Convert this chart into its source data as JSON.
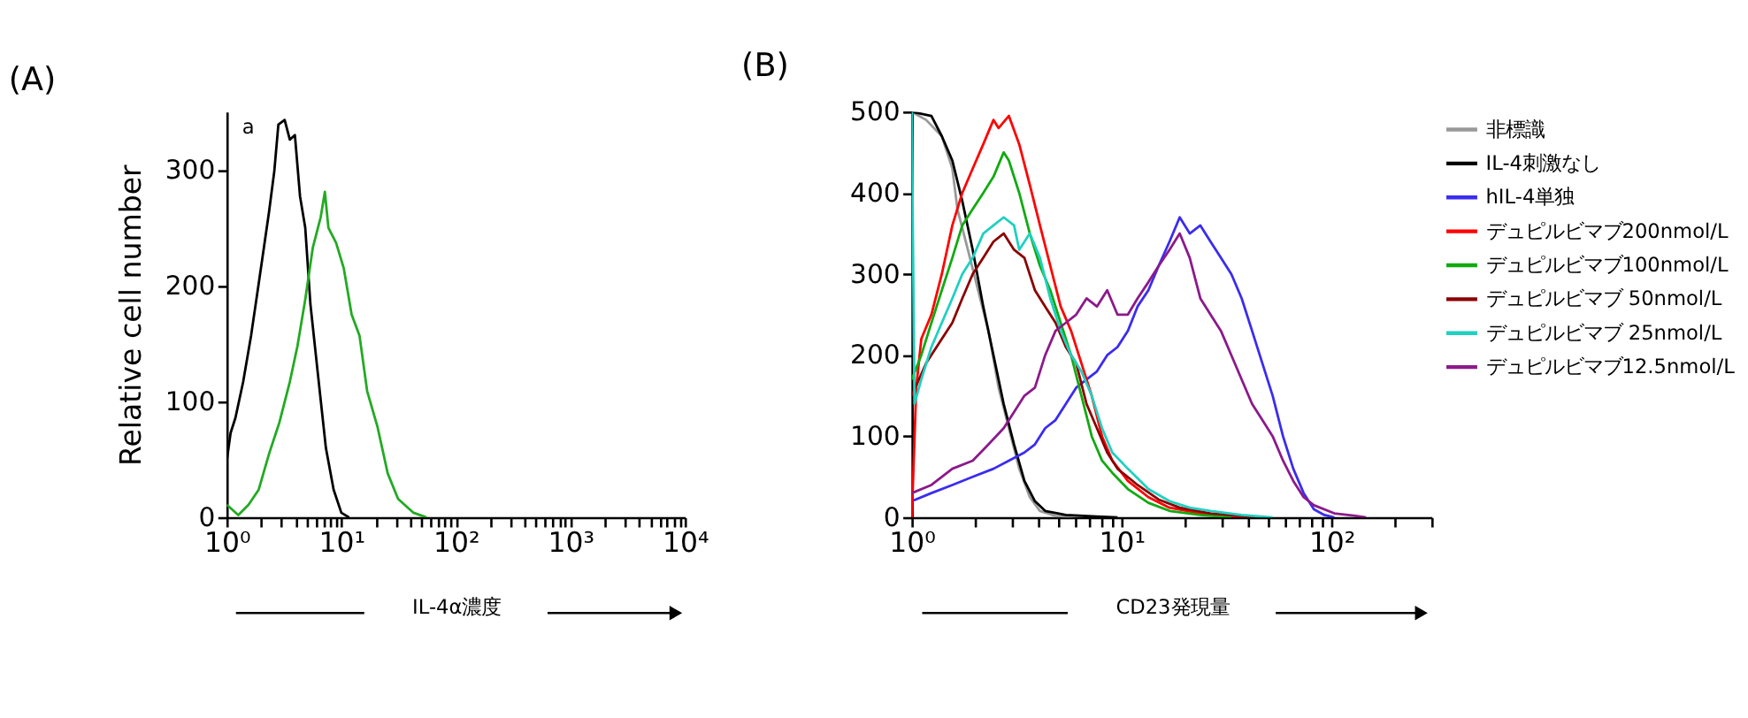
{
  "chart_data": [
    {
      "type": "line",
      "title": "(A)",
      "ylabel": "Relative cell number",
      "xlabel": "IL-4α濃度",
      "log": "x",
      "grid": false,
      "legend": false,
      "annotations": [
        "a"
      ],
      "xlim": [
        1,
        10000
      ],
      "ylim": [
        0,
        350
      ],
      "yticks": [
        0,
        100,
        200,
        300
      ],
      "xticks": [
        {
          "value": 1,
          "label": "10⁰"
        },
        {
          "value": 2,
          "label": null
        },
        {
          "value": 3,
          "label": null
        },
        {
          "value": 4,
          "label": null
        },
        {
          "value": 5,
          "label": null
        },
        {
          "value": 6,
          "label": null
        },
        {
          "value": 7,
          "label": null
        },
        {
          "value": 8,
          "label": null
        },
        {
          "value": 9,
          "label": null
        },
        {
          "value": 10,
          "label": "10¹"
        },
        {
          "value": 20,
          "label": null
        },
        {
          "value": 30,
          "label": null
        },
        {
          "value": 40,
          "label": null
        },
        {
          "value": 50,
          "label": null
        },
        {
          "value": 60,
          "label": null
        },
        {
          "value": 70,
          "label": null
        },
        {
          "value": 80,
          "label": null
        },
        {
          "value": 90,
          "label": null
        },
        {
          "value": 100,
          "label": "10²"
        },
        {
          "value": 200,
          "label": null
        },
        {
          "value": 300,
          "label": null
        },
        {
          "value": 400,
          "label": null
        },
        {
          "value": 500,
          "label": null
        },
        {
          "value": 600,
          "label": null
        },
        {
          "value": 700,
          "label": null
        },
        {
          "value": 800,
          "label": null
        },
        {
          "value": 900,
          "label": null
        },
        {
          "value": 1000,
          "label": "10³"
        },
        {
          "value": 2000,
          "label": null
        },
        {
          "value": 3000,
          "label": null
        },
        {
          "value": 4000,
          "label": null
        },
        {
          "value": 5000,
          "label": null
        },
        {
          "value": 6000,
          "label": null
        },
        {
          "value": 7000,
          "label": null
        },
        {
          "value": 8000,
          "label": null
        },
        {
          "value": 9000,
          "label": null
        },
        {
          "value": 10000,
          "label": "10⁴"
        }
      ],
      "series": [
        {
          "color": "#000000",
          "x": [
            1.0,
            1.08,
            1.19,
            1.39,
            1.63,
            1.9,
            2.11,
            2.34,
            2.6,
            2.82,
            3.2,
            3.55,
            3.93,
            4.36,
            4.84,
            5.37,
            6.27,
            7.33,
            8.56,
            10,
            11.7
          ],
          "values": [
            49,
            73,
            86,
            117,
            157,
            202,
            233,
            264,
            299,
            339,
            343,
            326,
            330,
            277,
            250,
            184,
            122,
            60,
            24,
            4,
            0
          ]
        },
        {
          "color": "#22aa22",
          "x": [
            1.0,
            1.26,
            1.55,
            1.9,
            2.34,
            2.88,
            3.55,
            4.14,
            4.84,
            5.64,
            6.6,
            7.18,
            7.71,
            9.0,
            10.5,
            12.3,
            14.4,
            16.8,
            20.7,
            25.4,
            31.3,
            42.7,
            55.4
          ],
          "values": [
            11,
            2,
            11,
            24,
            55,
            82,
            117,
            148,
            188,
            233,
            259,
            281,
            250,
            237,
            215,
            175,
            157,
            109,
            78,
            38,
            16,
            4,
            0
          ]
        }
      ]
    },
    {
      "type": "line",
      "title": "(B)",
      "xlabel": "CD23発現量",
      "log": "x",
      "grid": false,
      "legend": "right",
      "xlim": [
        1,
        300
      ],
      "ylim": [
        0,
        500
      ],
      "yticks": [
        0,
        100,
        200,
        300,
        400,
        500
      ],
      "xticks": [
        {
          "value": 1,
          "label": "10⁰"
        },
        {
          "value": 2,
          "label": null
        },
        {
          "value": 3,
          "label": null
        },
        {
          "value": 4,
          "label": null
        },
        {
          "value": 5,
          "label": null
        },
        {
          "value": 6,
          "label": null
        },
        {
          "value": 7,
          "label": null
        },
        {
          "value": 8,
          "label": null
        },
        {
          "value": 9,
          "label": null
        },
        {
          "value": 10,
          "label": "10¹"
        },
        {
          "value": 20,
          "label": null
        },
        {
          "value": 30,
          "label": null
        },
        {
          "value": 40,
          "label": null
        },
        {
          "value": 50,
          "label": null
        },
        {
          "value": 60,
          "label": null
        },
        {
          "value": 70,
          "label": null
        },
        {
          "value": 80,
          "label": null
        },
        {
          "value": 90,
          "label": null
        },
        {
          "value": 100,
          "label": "10²"
        },
        {
          "value": 200,
          "label": null
        },
        {
          "value": 300,
          "label": null
        }
      ],
      "series": [
        {
          "name": "非標識",
          "color": "#999999",
          "x": [
            1.0,
            1.17,
            1.39,
            1.56,
            1.65,
            1.85,
            2.07,
            2.32,
            2.59,
            2.9,
            3.25,
            3.65,
            4.08,
            4.84,
            5.74
          ],
          "values": [
            500,
            490,
            470,
            430,
            380,
            330,
            280,
            230,
            160,
            110,
            60,
            25,
            8,
            2,
            0
          ]
        },
        {
          "name": "IL-4刺激なし",
          "color": "#000000",
          "x": [
            1.0,
            1.24,
            1.39,
            1.56,
            1.74,
            1.95,
            2.19,
            2.45,
            2.74,
            3.07,
            3.44,
            3.86,
            4.32,
            5.42,
            7.62,
            9.55
          ],
          "values": [
            500,
            495,
            470,
            440,
            390,
            330,
            260,
            200,
            140,
            90,
            45,
            20,
            8,
            3,
            1,
            0
          ]
        },
        {
          "name": "hIL-4単独",
          "color": "#3a2cf0",
          "x": [
            1.0,
            1.24,
            1.56,
            1.95,
            2.45,
            2.9,
            3.44,
            3.86,
            4.32,
            4.84,
            5.42,
            6.07,
            6.8,
            7.62,
            8.53,
            9.55,
            10.7,
            11.9,
            13.4,
            15.0,
            16.9,
            18.9,
            21.1,
            23.7,
            26.5,
            29.7,
            33.3,
            37.3,
            41.8,
            46.8,
            52.4,
            58.7,
            65.7,
            73.6,
            82.4,
            92.4,
            103
          ],
          "values": [
            20,
            30,
            40,
            50,
            60,
            70,
            80,
            90,
            110,
            120,
            140,
            160,
            170,
            180,
            200,
            210,
            230,
            260,
            280,
            310,
            340,
            370,
            350,
            360,
            340,
            320,
            300,
            270,
            230,
            190,
            150,
            100,
            60,
            30,
            10,
            3,
            0
          ]
        },
        {
          "name": "デュピルビマブ200nmol/L",
          "color": "#ff0000",
          "x": [
            1.0,
            1.05,
            1.11,
            1.24,
            1.39,
            1.56,
            1.74,
            1.95,
            2.19,
            2.45,
            2.59,
            2.9,
            3.25,
            3.65,
            4.08,
            4.57,
            5.12,
            5.74,
            6.43,
            7.2,
            8.06,
            9.02,
            10.7,
            13.4,
            16.9,
            23.7,
            33.3,
            41.8
          ],
          "values": [
            0,
            160,
            220,
            250,
            300,
            360,
            400,
            430,
            460,
            490,
            480,
            495,
            460,
            410,
            360,
            310,
            260,
            230,
            190,
            150,
            100,
            70,
            45,
            25,
            12,
            5,
            2,
            0
          ]
        },
        {
          "name": "デュピルビマブ100nmol/L",
          "color": "#11aa11",
          "x": [
            1.0,
            1.11,
            1.24,
            1.39,
            1.56,
            1.74,
            1.95,
            2.19,
            2.45,
            2.74,
            2.9,
            3.25,
            3.65,
            4.08,
            4.57,
            5.12,
            5.74,
            6.43,
            7.2,
            8.06,
            9.02,
            10.7,
            13.4,
            16.9,
            23.7,
            33.3
          ],
          "values": [
            170,
            200,
            240,
            280,
            320,
            360,
            380,
            400,
            420,
            450,
            440,
            400,
            350,
            310,
            280,
            240,
            200,
            150,
            100,
            70,
            55,
            35,
            18,
            8,
            3,
            0
          ]
        },
        {
          "name": "デュピルビマブ 50nmol/L",
          "color": "#8b0000",
          "x": [
            1.0,
            1.17,
            1.39,
            1.56,
            1.74,
            1.95,
            2.19,
            2.45,
            2.74,
            3.07,
            3.44,
            3.86,
            4.32,
            4.84,
            5.42,
            6.07,
            6.8,
            7.62,
            8.53,
            9.55,
            11.9,
            15.0,
            18.9,
            26.5,
            37.3,
            46.8
          ],
          "values": [
            150,
            190,
            220,
            240,
            270,
            300,
            320,
            340,
            350,
            330,
            320,
            280,
            260,
            240,
            210,
            190,
            140,
            110,
            80,
            60,
            40,
            22,
            12,
            5,
            2,
            0
          ]
        },
        {
          "name": "デュピルビマブ 25nmol/L",
          "color": "#20d0c0",
          "x": [
            1.0,
            1.03,
            1.11,
            1.24,
            1.39,
            1.56,
            1.74,
            1.95,
            2.19,
            2.45,
            2.74,
            3.07,
            3.25,
            3.65,
            4.08,
            4.57,
            5.12,
            5.74,
            6.43,
            7.2,
            8.06,
            9.02,
            10.7,
            13.4,
            16.9,
            21.1,
            26.5,
            37.3,
            52.4
          ],
          "values": [
            500,
            140,
            170,
            210,
            240,
            270,
            300,
            320,
            350,
            360,
            370,
            360,
            330,
            350,
            320,
            270,
            230,
            200,
            180,
            150,
            110,
            80,
            60,
            35,
            20,
            12,
            8,
            3,
            0
          ]
        },
        {
          "name": "デュピルビマブ12.5nmol/L",
          "color": "#8b1a8b",
          "x": [
            1.0,
            1.24,
            1.56,
            1.95,
            2.32,
            2.74,
            3.07,
            3.44,
            3.86,
            4.32,
            4.84,
            5.42,
            6.07,
            6.8,
            7.62,
            8.53,
            9.55,
            10.7,
            11.9,
            13.4,
            15.0,
            16.9,
            18.9,
            21.1,
            23.7,
            26.5,
            29.7,
            33.3,
            37.3,
            41.8,
            46.8,
            52.4,
            58.7,
            65.7,
            73.6,
            82.4,
            103,
            130,
            146
          ],
          "values": [
            30,
            40,
            60,
            70,
            90,
            110,
            130,
            150,
            160,
            200,
            230,
            240,
            250,
            270,
            260,
            280,
            250,
            250,
            270,
            290,
            310,
            330,
            350,
            320,
            270,
            250,
            230,
            200,
            170,
            140,
            120,
            100,
            70,
            45,
            25,
            15,
            5,
            2,
            0
          ]
        }
      ]
    }
  ]
}
